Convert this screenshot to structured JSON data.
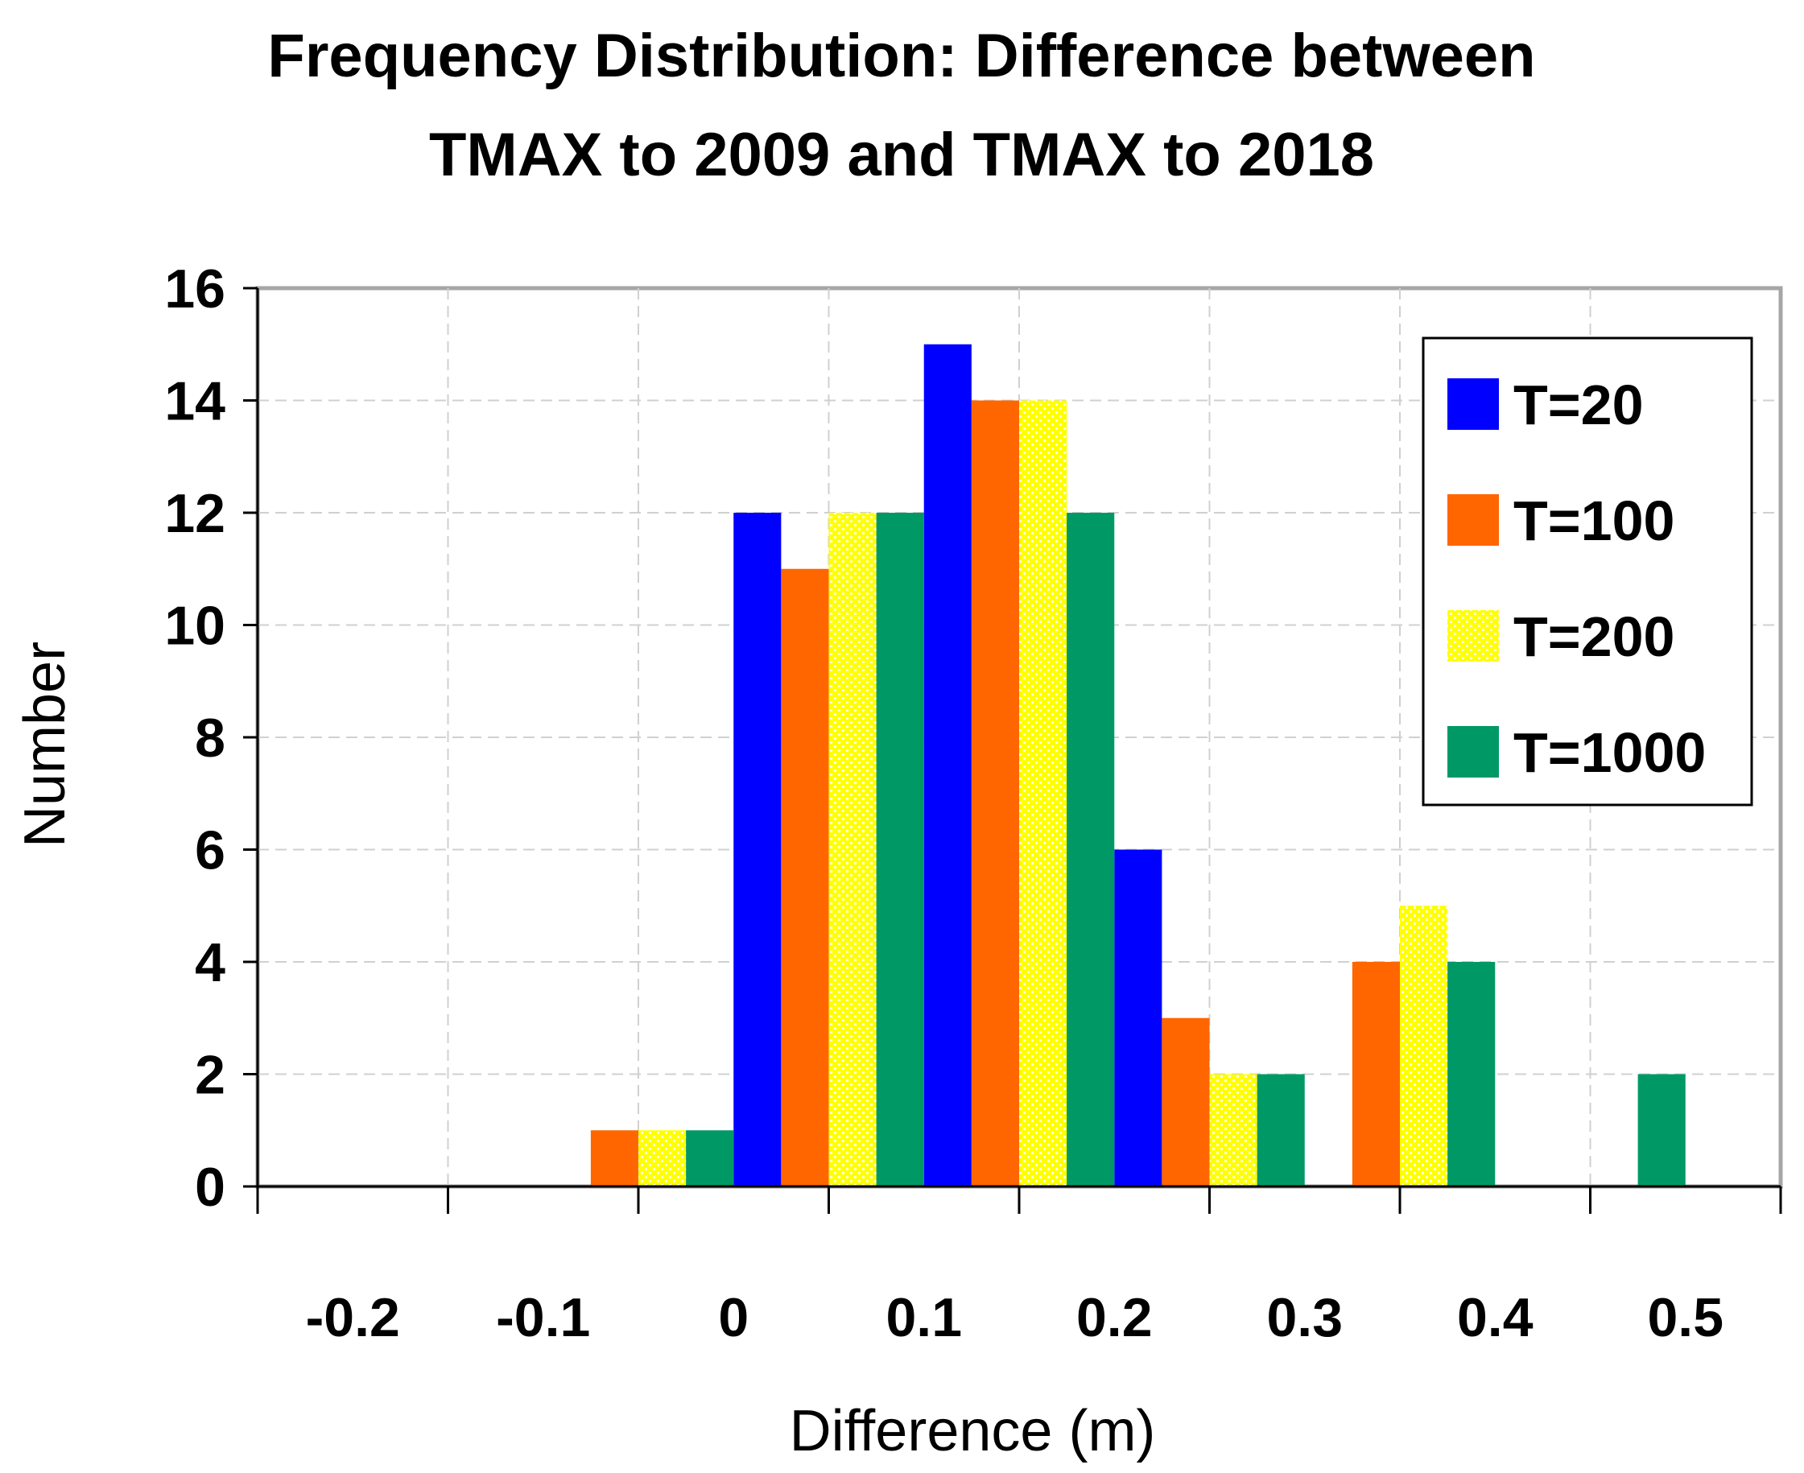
{
  "chart_data": {
    "type": "bar",
    "title": [
      "Frequency Distribution: Difference between",
      "TMAX to 2009 and TMAX to 2018"
    ],
    "xlabel": "Difference (m)",
    "ylabel": "Number",
    "ylim": [
      0,
      16
    ],
    "yticks": [
      0,
      2,
      4,
      6,
      8,
      10,
      12,
      14,
      16
    ],
    "categories": [
      "-0.2",
      "-0.1",
      "0",
      "0.1",
      "0.2",
      "0.3",
      "0.4",
      "0.5"
    ],
    "series": [
      {
        "name": "T=20",
        "color": "#0000ff",
        "pattern": "solid",
        "values": [
          0,
          0,
          12,
          15,
          6,
          0,
          0,
          0
        ]
      },
      {
        "name": "T=100",
        "color": "#ff6600",
        "pattern": "solid",
        "values": [
          0,
          1,
          11,
          14,
          3,
          4,
          0,
          0
        ]
      },
      {
        "name": "T=200",
        "color": "#ffff00",
        "pattern": "dotted",
        "values": [
          0,
          1,
          12,
          14,
          2,
          5,
          0,
          0
        ]
      },
      {
        "name": "T=1000",
        "color": "#009966",
        "pattern": "solid",
        "values": [
          0,
          1,
          12,
          12,
          2,
          4,
          2,
          0
        ]
      }
    ],
    "grid": true,
    "legend_position": "top-right"
  }
}
